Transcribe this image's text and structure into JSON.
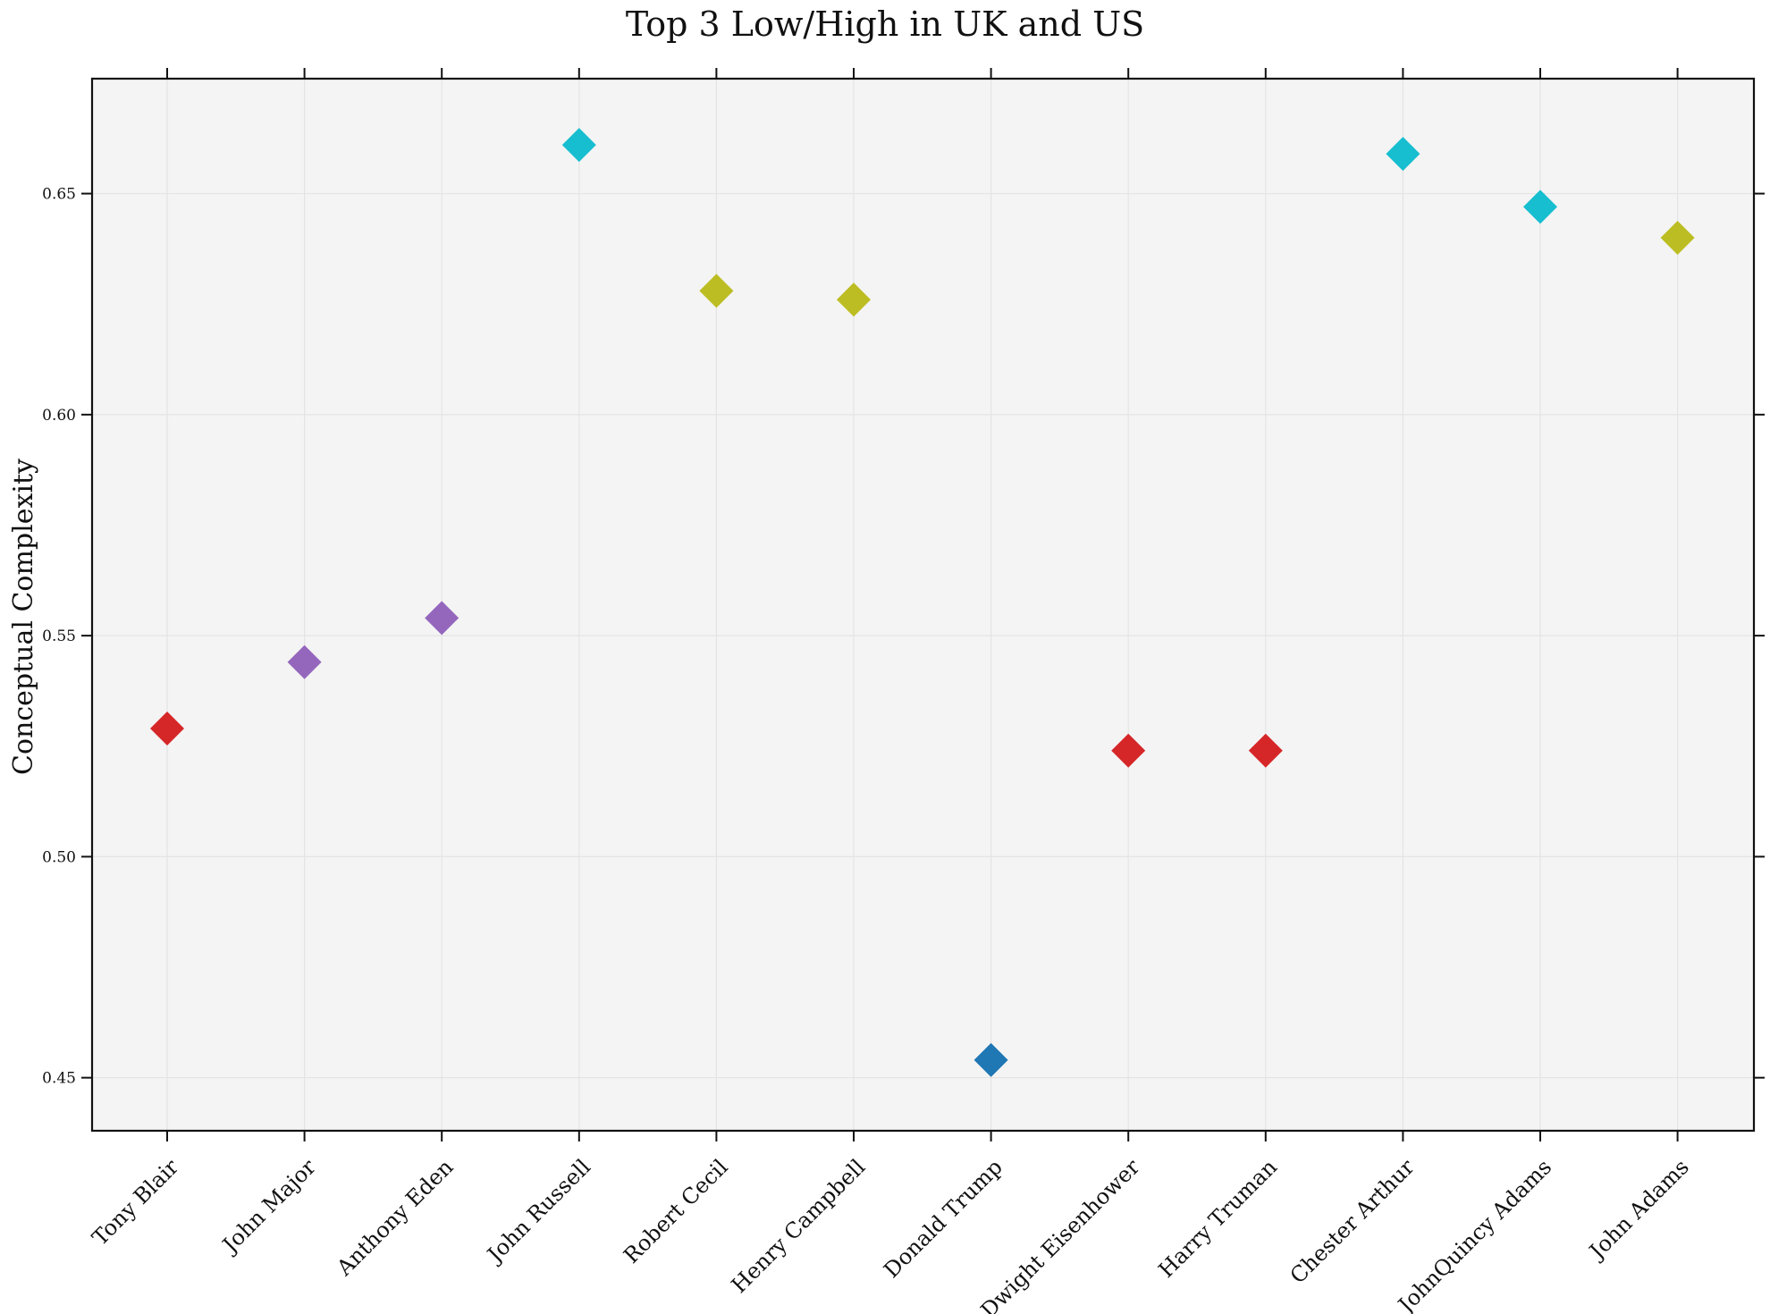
{
  "chart_data": {
    "type": "scatter",
    "title": "Top 3 Low/High in UK and US",
    "xlabel": "",
    "ylabel": "Conceptual Complexity",
    "ylim": [
      0.438,
      0.676
    ],
    "yticks": [
      0.45,
      0.5,
      0.55,
      0.6,
      0.65
    ],
    "ytick_labels": [
      "0.45",
      "0.50",
      "0.55",
      "0.60",
      "0.65"
    ],
    "grid": true,
    "marker": "diamond",
    "background_color": "#f4f4f4",
    "categories": [
      "Tony Blair",
      "John Major",
      "Anthony Eden",
      "John Russell",
      "Robert Cecil",
      "Henry Campbell",
      "Donald Trump",
      "Dwight Eisenhower",
      "Harry Truman",
      "Chester Arthur",
      "JohnQuincy Adams",
      "John Adams"
    ],
    "values": [
      0.529,
      0.544,
      0.554,
      0.661,
      0.628,
      0.626,
      0.454,
      0.524,
      0.524,
      0.659,
      0.647,
      0.64
    ],
    "colors": [
      "#d62728",
      "#9467bd",
      "#9467bd",
      "#17becf",
      "#bcbd22",
      "#bcbd22",
      "#1f77b4",
      "#d62728",
      "#d62728",
      "#17becf",
      "#17becf",
      "#bcbd22"
    ]
  }
}
